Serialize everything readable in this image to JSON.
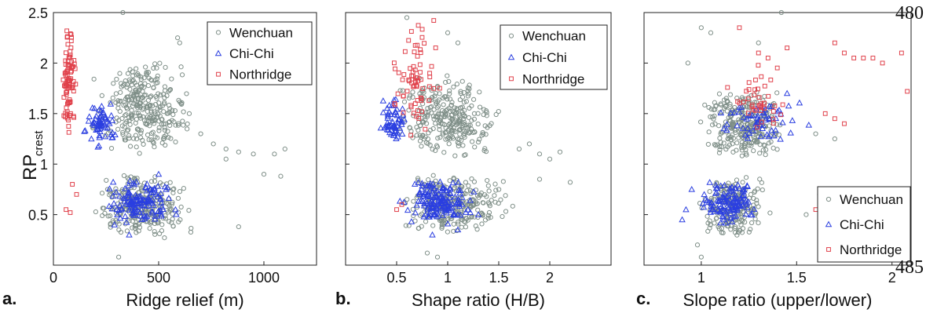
{
  "line_numbers": {
    "top": "480",
    "bottom": "485"
  },
  "shared_ylabel": {
    "main": "RP",
    "subscript": "crest"
  },
  "chart_data": [
    {
      "type": "scatter",
      "panel_label": "a.",
      "xlabel": "Ridge relief (m)",
      "ylabel": "RP crest",
      "xlim": [
        0,
        1250
      ],
      "ylim": [
        0,
        2.5
      ],
      "xticks": [
        0,
        500,
        1000
      ],
      "yticks": [
        0.5,
        1,
        1.5,
        2,
        2.5
      ],
      "legend_position": "top-right",
      "series": [
        {
          "name": "Wenchuan",
          "marker": "circle",
          "color": "#7f8f88",
          "clusters": [
            {
              "x": [
                150,
                700
              ],
              "y": [
                1.1,
                2.05
              ],
              "n": 300
            },
            {
              "x": [
                120,
                700
              ],
              "y": [
                0.25,
                0.9
              ],
              "n": 260
            }
          ],
          "points": [
            [
              820,
              1.15
            ],
            [
              880,
              1.12
            ],
            [
              950,
              1.1
            ],
            [
              1050,
              1.1
            ],
            [
              1100,
              1.15
            ],
            [
              1000,
              0.9
            ],
            [
              1080,
              0.88
            ],
            [
              880,
              0.38
            ],
            [
              310,
              0.08
            ],
            [
              330,
              2.5
            ],
            [
              590,
              2.25
            ],
            [
              600,
              2.2
            ],
            [
              820,
              1.05
            ],
            [
              760,
              1.2
            ],
            [
              700,
              1.3
            ]
          ]
        },
        {
          "name": "Chi-Chi",
          "marker": "triangle",
          "color": "#2b3fe0",
          "clusters": [
            {
              "x": [
                120,
                340
              ],
              "y": [
                1.15,
                1.65
              ],
              "n": 60
            },
            {
              "x": [
                200,
                620
              ],
              "y": [
                0.4,
                0.85
              ],
              "n": 130
            }
          ],
          "points": [
            [
              360,
              0.3
            ],
            [
              290,
              0.4
            ],
            [
              500,
              0.9
            ],
            [
              580,
              0.55
            ]
          ]
        },
        {
          "name": "Northridge",
          "marker": "square",
          "color": "#e0404a",
          "clusters": [
            {
              "x": [
                40,
                110
              ],
              "y": [
                1.2,
                2.45
              ],
              "n": 90
            }
          ],
          "points": [
            [
              60,
              0.55
            ],
            [
              80,
              0.52
            ],
            [
              90,
              0.8
            ],
            [
              110,
              0.7
            ]
          ]
        }
      ]
    },
    {
      "type": "scatter",
      "panel_label": "b.",
      "xlabel": "Shape ratio (H/B)",
      "ylabel": "RP crest",
      "xlim": [
        0,
        2.6
      ],
      "ylim": [
        0,
        2.5
      ],
      "xticks": [
        0.5,
        1,
        1.5,
        2
      ],
      "yticks": [
        0.5,
        1,
        1.5,
        2,
        2.5
      ],
      "legend_position": "top-right",
      "series": [
        {
          "name": "Wenchuan",
          "marker": "circle",
          "color": "#7f8f88",
          "clusters": [
            {
              "x": [
                0.4,
                1.6
              ],
              "y": [
                1.05,
                1.9
              ],
              "n": 280
            },
            {
              "x": [
                0.45,
                1.7
              ],
              "y": [
                0.3,
                0.92
              ],
              "n": 260
            }
          ],
          "points": [
            [
              1.7,
              1.15
            ],
            [
              1.8,
              1.2
            ],
            [
              1.9,
              1.1
            ],
            [
              2.0,
              1.05
            ],
            [
              2.1,
              1.12
            ],
            [
              1.9,
              0.85
            ],
            [
              2.2,
              0.82
            ],
            [
              0.8,
              0.12
            ],
            [
              0.9,
              0.08
            ],
            [
              0.6,
              2.45
            ],
            [
              1.0,
              2.3
            ],
            [
              1.1,
              2.2
            ]
          ]
        },
        {
          "name": "Chi-Chi",
          "marker": "triangle",
          "color": "#2b3fe0",
          "clusters": [
            {
              "x": [
                0.3,
                0.65
              ],
              "y": [
                1.2,
                1.65
              ],
              "n": 60
            },
            {
              "x": [
                0.5,
                1.3
              ],
              "y": [
                0.4,
                0.85
              ],
              "n": 150
            }
          ],
          "points": [
            [
              0.85,
              0.3
            ],
            [
              1.1,
              0.35
            ],
            [
              1.3,
              0.5
            ]
          ]
        },
        {
          "name": "Northridge",
          "marker": "square",
          "color": "#e0404a",
          "clusters": [
            {
              "x": [
                0.35,
                1.0
              ],
              "y": [
                1.2,
                2.45
              ],
              "n": 70
            }
          ],
          "points": [
            [
              0.5,
              0.55
            ],
            [
              0.55,
              0.6
            ]
          ]
        }
      ]
    },
    {
      "type": "scatter",
      "panel_label": "c.",
      "xlabel": "Slope ratio (upper/lower)",
      "ylabel": "RP crest",
      "xlim": [
        0.7,
        2.1
      ],
      "ylim": [
        0,
        2.5
      ],
      "xticks": [
        1,
        1.5,
        2
      ],
      "yticks": [
        0.5,
        1,
        1.5,
        2,
        2.5
      ],
      "legend_position": "bottom-right",
      "series": [
        {
          "name": "Wenchuan",
          "marker": "circle",
          "color": "#7f8f88",
          "clusters": [
            {
              "x": [
                0.95,
                1.5
              ],
              "y": [
                1.05,
                1.75
              ],
              "n": 280
            },
            {
              "x": [
                0.95,
                1.4
              ],
              "y": [
                0.25,
                0.9
              ],
              "n": 200
            }
          ],
          "points": [
            [
              0.93,
              2.0
            ],
            [
              1.0,
              2.35
            ],
            [
              1.05,
              2.3
            ],
            [
              1.3,
              2.2
            ],
            [
              1.42,
              2.5
            ],
            [
              1.6,
              1.3
            ],
            [
              1.7,
              1.25
            ],
            [
              1.55,
              0.5
            ],
            [
              1.62,
              0.7
            ],
            [
              1.0,
              0.08
            ],
            [
              0.98,
              0.2
            ]
          ]
        },
        {
          "name": "Chi-Chi",
          "marker": "triangle",
          "color": "#2b3fe0",
          "clusters": [
            {
              "x": [
                1.0,
                1.6
              ],
              "y": [
                1.2,
                1.65
              ],
              "n": 60
            },
            {
              "x": [
                0.95,
                1.35
              ],
              "y": [
                0.4,
                0.85
              ],
              "n": 120
            }
          ],
          "points": [
            [
              0.9,
              0.45
            ],
            [
              0.92,
              0.55
            ],
            [
              0.95,
              0.75
            ],
            [
              1.45,
              1.7
            ]
          ]
        },
        {
          "name": "Northridge",
          "marker": "square",
          "color": "#e0404a",
          "clusters": [
            {
              "x": [
                1.1,
                1.5
              ],
              "y": [
                1.3,
                2.0
              ],
              "n": 40
            }
          ],
          "points": [
            [
              1.2,
              2.35
            ],
            [
              1.3,
              2.1
            ],
            [
              1.35,
              2.05
            ],
            [
              1.45,
              2.15
            ],
            [
              1.7,
              2.2
            ],
            [
              1.75,
              2.1
            ],
            [
              1.8,
              2.05
            ],
            [
              1.85,
              2.05
            ],
            [
              1.9,
              2.05
            ],
            [
              1.95,
              2.0
            ],
            [
              2.05,
              2.1
            ],
            [
              1.65,
              1.5
            ],
            [
              1.7,
              1.45
            ],
            [
              1.75,
              1.4
            ],
            [
              2.08,
              1.72
            ],
            [
              1.6,
              0.55
            ],
            [
              1.65,
              0.38
            ],
            [
              1.75,
              0.5
            ]
          ]
        }
      ]
    }
  ]
}
